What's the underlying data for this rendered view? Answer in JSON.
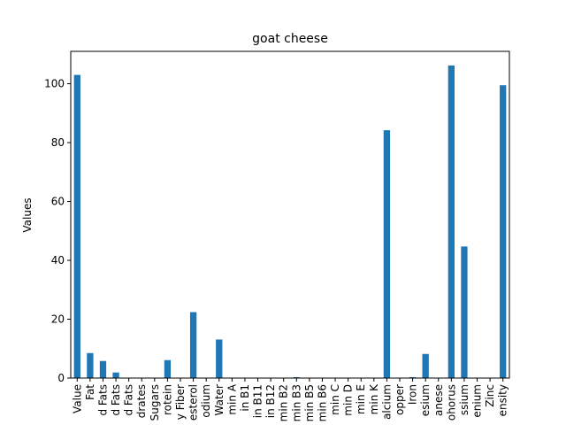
{
  "chart_data": {
    "type": "bar",
    "title": "goat cheese",
    "xlabel": "",
    "ylabel": "Values",
    "ylim": [
      0,
      111
    ],
    "yticks": [
      0,
      20,
      40,
      60,
      80,
      100
    ],
    "grid": false,
    "legend": "none",
    "bar_color": "#1f77b4",
    "categories": [
      "Value",
      "Fat",
      "d Fats",
      "d Fats",
      "d Fats",
      "drates",
      "Sugars",
      "rotein",
      "y Fiber",
      "esterol",
      "odium",
      "Water",
      "min A",
      "in B1",
      "in B11",
      "in B12",
      "min B2",
      "min B3",
      "min B5",
      "min B6",
      "min C",
      "min D",
      "min E",
      "min K",
      "alcium",
      "opper",
      "Iron",
      "esium",
      "anese",
      "ohorus",
      "ssium",
      "enium",
      "Zinc",
      "ensity"
    ],
    "values": [
      103,
      8.5,
      5.8,
      1.9,
      0,
      0,
      0,
      6.1,
      0,
      22.4,
      0,
      13.1,
      0,
      0,
      0,
      0,
      0,
      0.3,
      0,
      0,
      0,
      0,
      0,
      0,
      84.2,
      0,
      0.3,
      8.2,
      0,
      106.2,
      44.7,
      0,
      0,
      99.5
    ]
  }
}
